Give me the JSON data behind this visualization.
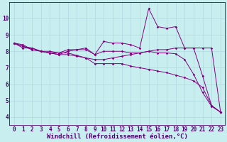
{
  "xlabel": "Windchill (Refroidissement éolien,°C)",
  "bg_color": "#c8eef0",
  "grid_color": "#b0d8dc",
  "line_color": "#800080",
  "x_ticks": [
    0,
    1,
    2,
    3,
    4,
    5,
    6,
    7,
    8,
    9,
    10,
    11,
    12,
    13,
    14,
    15,
    16,
    17,
    18,
    19,
    20,
    21,
    22,
    23
  ],
  "ylim": [
    3.5,
    11.0
  ],
  "xlim": [
    -0.5,
    23.5
  ],
  "series": [
    [
      8.5,
      8.4,
      8.1,
      8.0,
      8.0,
      7.9,
      7.9,
      7.75,
      7.6,
      7.25,
      7.25,
      7.25,
      7.25,
      7.1,
      7.0,
      6.9,
      6.8,
      6.7,
      6.55,
      6.4,
      6.2,
      5.8,
      4.7,
      4.3
    ],
    [
      8.5,
      8.2,
      8.2,
      8.0,
      7.9,
      7.9,
      8.1,
      8.1,
      8.2,
      7.8,
      8.6,
      8.5,
      8.5,
      8.4,
      8.2,
      10.6,
      9.5,
      9.4,
      9.5,
      8.2,
      8.2,
      6.5,
      4.7,
      4.3
    ],
    [
      8.5,
      8.3,
      8.1,
      8.0,
      7.9,
      7.8,
      8.0,
      8.1,
      8.1,
      7.8,
      8.0,
      8.0,
      8.0,
      7.9,
      7.9,
      8.0,
      8.1,
      8.1,
      8.2,
      8.2,
      8.2,
      8.2,
      8.2,
      4.3
    ],
    [
      8.5,
      8.3,
      8.2,
      8.0,
      7.9,
      7.8,
      7.8,
      7.7,
      7.6,
      7.5,
      7.5,
      7.6,
      7.7,
      7.8,
      7.9,
      8.0,
      7.9,
      7.9,
      7.85,
      7.5,
      6.6,
      5.5,
      4.65,
      4.3
    ]
  ],
  "yticks": [
    4,
    5,
    6,
    7,
    8,
    9,
    10
  ],
  "font_color": "#4b006e",
  "tick_font_size": 5.5,
  "label_font_size": 6.5
}
